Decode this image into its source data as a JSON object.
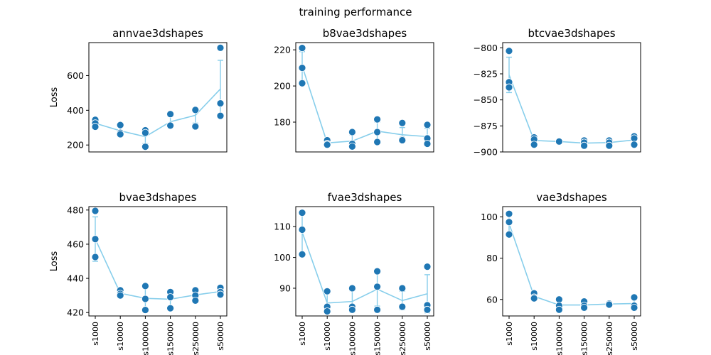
{
  "figure": {
    "title": "training performance"
  },
  "colors": {
    "points": "#1f77b4",
    "mean_line": "#87ceeb"
  },
  "chart_data": [
    {
      "type": "scatter",
      "title": "annvae3dshapes",
      "ylabel": "Loss",
      "categories": [
        "s1000",
        "s10000",
        "s100000",
        "s150000",
        "s250000",
        "s50000"
      ],
      "show_xticks": false,
      "ylim": [
        160,
        790
      ],
      "yticks": [
        200,
        400,
        600
      ],
      "points": [
        [
          345,
          325,
          305
        ],
        [
          315,
          270,
          262
        ],
        [
          285,
          270,
          190
        ],
        [
          378,
          312,
          312
        ],
        [
          405,
          402,
          307
        ],
        [
          760,
          440,
          368
        ]
      ],
      "mean": [
        325,
        282,
        248,
        334,
        371,
        523
      ],
      "err": [
        18,
        24,
        40,
        30,
        45,
        165
      ]
    },
    {
      "type": "scatter",
      "title": "b8vae3dshapes",
      "ylabel": "",
      "categories": [
        "s1000",
        "s10000",
        "s100000",
        "s150000",
        "s250000",
        "s50000"
      ],
      "show_xticks": false,
      "ylim": [
        163.5,
        224
      ],
      "yticks": [
        180,
        200,
        220
      ],
      "points": [
        [
          221,
          210,
          201.5
        ],
        [
          170,
          168,
          167.5
        ],
        [
          174.5,
          168,
          166.5
        ],
        [
          181.5,
          174.5,
          169
        ],
        [
          179.5,
          170.5,
          170
        ],
        [
          178.5,
          171,
          168
        ]
      ],
      "mean": [
        211,
        168.5,
        169.5,
        175,
        173,
        172
      ],
      "err": [
        8,
        1.5,
        3.5,
        5,
        4,
        4.5
      ]
    },
    {
      "type": "scatter",
      "title": "btcvae3dshapes",
      "ylabel": "",
      "categories": [
        "s1000",
        "s10000",
        "s100000",
        "s150000",
        "s250000",
        "s50000"
      ],
      "show_xticks": false,
      "ylim": [
        -900,
        -795
      ],
      "yticks": [
        -800,
        -825,
        -850,
        -875,
        -900
      ],
      "points": [
        [
          -803,
          -833,
          -838
        ],
        [
          -886,
          -888,
          -893
        ],
        [
          -890,
          -890,
          -890
        ],
        [
          -889,
          -891,
          -894
        ],
        [
          -889,
          -891,
          -894
        ],
        [
          -885,
          -887,
          -893
        ]
      ],
      "mean": [
        -826,
        -889,
        -890,
        -891.5,
        -891,
        -888.5
      ],
      "err": [
        17,
        3,
        0.8,
        2,
        2,
        3
      ]
    },
    {
      "type": "scatter",
      "title": "bvae3dshapes",
      "ylabel": "Loss",
      "categories": [
        "s1000",
        "s10000",
        "s100000",
        "s150000",
        "s250000",
        "s50000"
      ],
      "show_xticks": true,
      "ylim": [
        418,
        482
      ],
      "yticks": [
        420,
        440,
        460,
        480
      ],
      "points": [
        [
          479.5,
          463,
          452.5
        ],
        [
          433,
          431,
          430
        ],
        [
          435.5,
          428,
          421.5
        ],
        [
          432,
          429,
          422.5
        ],
        [
          433,
          430,
          427
        ],
        [
          434.5,
          432,
          430.5
        ]
      ],
      "mean": [
        463,
        431.3,
        428.3,
        427.8,
        430.3,
        432.3
      ],
      "err": [
        13,
        1.5,
        7,
        5,
        3,
        2
      ]
    },
    {
      "type": "scatter",
      "title": "fvae3dshapes",
      "ylabel": "",
      "categories": [
        "s1000",
        "s10000",
        "s100000",
        "s150000",
        "s250000",
        "s50000"
      ],
      "show_xticks": true,
      "ylim": [
        81,
        116.5
      ],
      "yticks": [
        90,
        100,
        110
      ],
      "points": [
        [
          114.5,
          109,
          101
        ],
        [
          89,
          84,
          82.5
        ],
        [
          90,
          84,
          83
        ],
        [
          95.5,
          90.5,
          83
        ],
        [
          90,
          84,
          84
        ],
        [
          97,
          84.5,
          83
        ]
      ],
      "mean": [
        108.2,
        85.2,
        85.7,
        89.7,
        86,
        88.2
      ],
      "err": [
        6.5,
        3,
        3.5,
        5.5,
        3,
        6.2
      ]
    },
    {
      "type": "scatter",
      "title": "vae3dshapes",
      "ylabel": "",
      "categories": [
        "s1000",
        "s10000",
        "s100000",
        "s150000",
        "s250000",
        "s50000"
      ],
      "show_xticks": true,
      "ylim": [
        52,
        105
      ],
      "yticks": [
        60,
        80,
        100
      ],
      "points": [
        [
          101.5,
          97.5,
          91.5
        ],
        [
          63,
          61,
          60.5
        ],
        [
          60,
          57,
          55
        ],
        [
          59,
          57,
          56
        ],
        [
          58,
          58,
          57.5
        ],
        [
          61,
          57,
          56
        ]
      ],
      "mean": [
        96.8,
        61.5,
        57.3,
        57.3,
        57.8,
        58
      ],
      "err": [
        4.5,
        1.2,
        2.2,
        1.3,
        0.4,
        2.2
      ]
    }
  ]
}
